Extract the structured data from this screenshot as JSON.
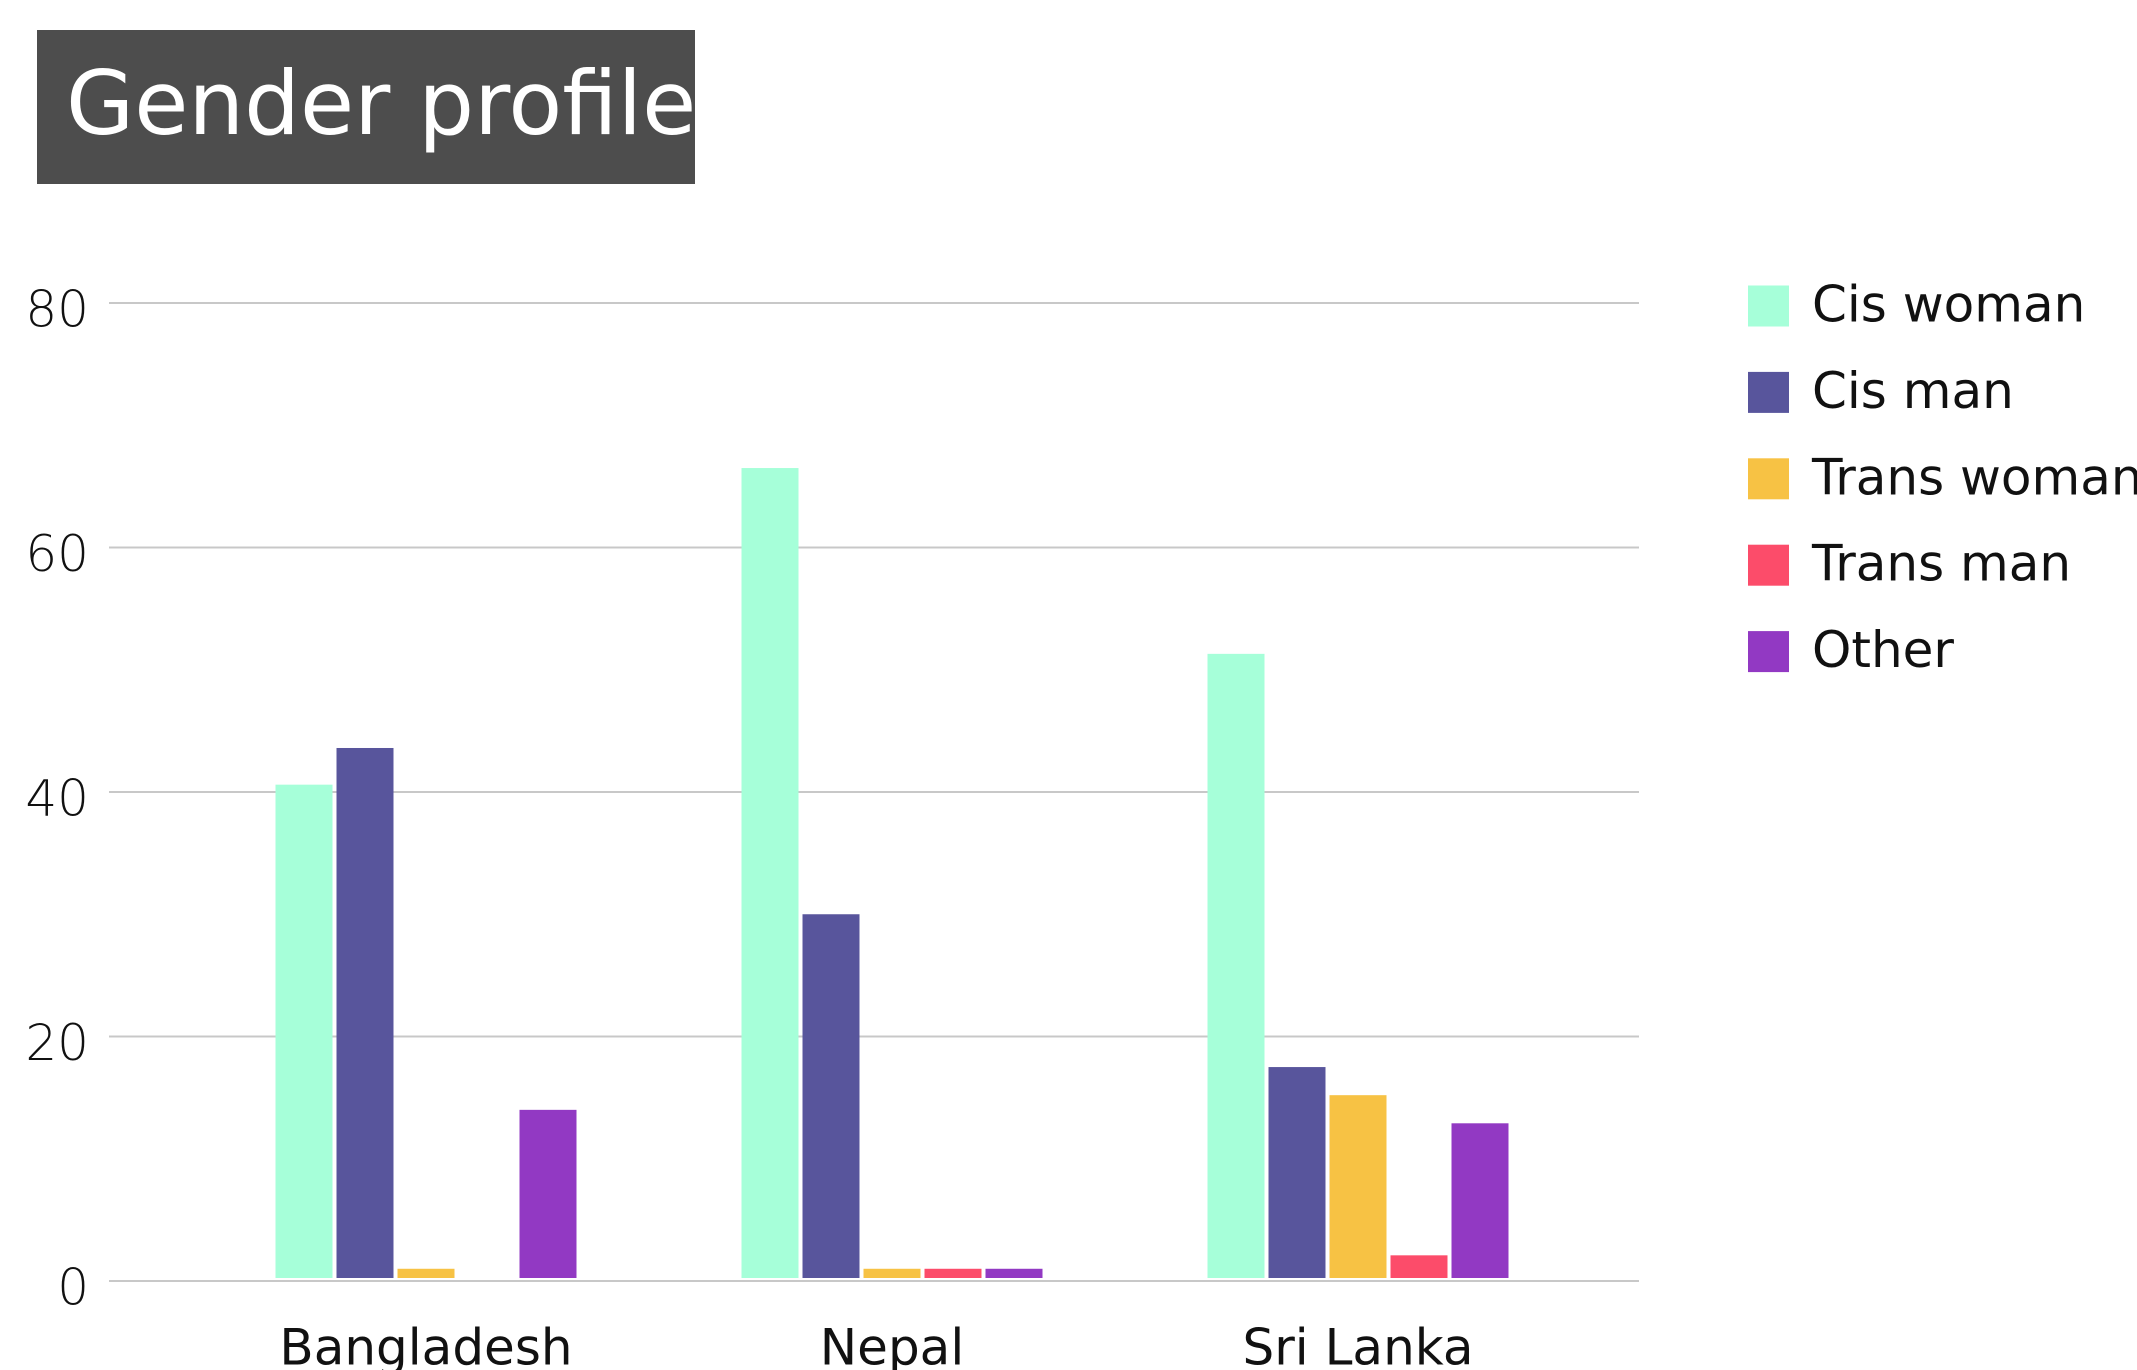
{
  "chart_data": {
    "type": "bar",
    "title": "Gender profile",
    "categories": [
      "Bangladesh",
      "Nepal",
      "Sri Lanka"
    ],
    "series": [
      {
        "name": "Cis woman",
        "color": "#a6ffd9",
        "values": [
          40.6,
          66.5,
          51.3
        ]
      },
      {
        "name": "Cis man",
        "color": "#58559c",
        "values": [
          43.6,
          30,
          17.5
        ]
      },
      {
        "name": "Trans woman",
        "color": "#f7c244",
        "values": [
          1,
          1,
          15.2
        ]
      },
      {
        "name": "Trans man",
        "color": "#fc4c6a",
        "values": [
          0,
          1,
          2.1
        ]
      },
      {
        "name": "Other",
        "color": "#9239c3",
        "values": [
          14,
          1,
          12.9
        ]
      }
    ],
    "ylim": [
      0,
      80
    ],
    "yticks": [
      0,
      20,
      40,
      60,
      80
    ],
    "grid": true,
    "legend": "right"
  }
}
